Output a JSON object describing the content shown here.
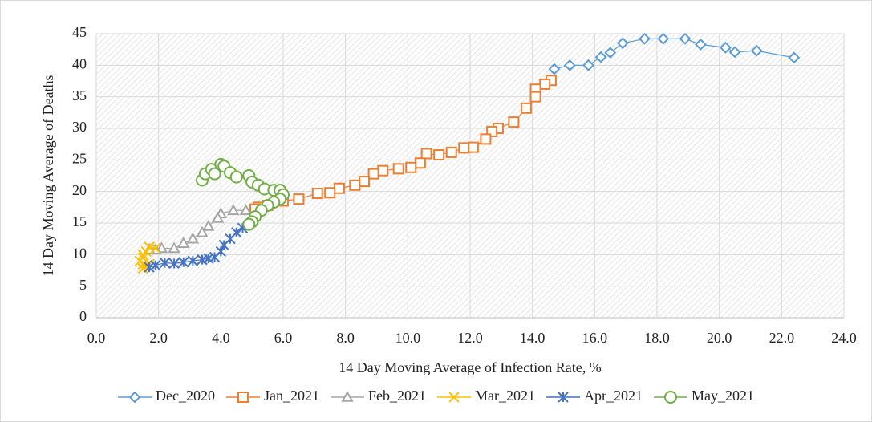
{
  "chart_data": {
    "type": "scatter",
    "xlabel": "14 Day Moving Average of Infection Rate, %",
    "ylabel": "14 Day Moving Average of  Deaths",
    "xlim": [
      0,
      24
    ],
    "ylim": [
      0,
      45
    ],
    "xticks": [
      {
        "value": 0,
        "label": "0.0"
      },
      {
        "value": 2,
        "label": "2.0"
      },
      {
        "value": 4,
        "label": "4.0"
      },
      {
        "value": 6,
        "label": "6.0"
      },
      {
        "value": 8,
        "label": "8.0"
      },
      {
        "value": 10,
        "label": "10.0"
      },
      {
        "value": 12,
        "label": "12.0"
      },
      {
        "value": 14,
        "label": "14.0"
      },
      {
        "value": 16,
        "label": "16.0"
      },
      {
        "value": 18,
        "label": "18.0"
      },
      {
        "value": 20,
        "label": "20.0"
      },
      {
        "value": 22,
        "label": "22.0"
      },
      {
        "value": 24,
        "label": "24.0"
      }
    ],
    "yticks": [
      0,
      5,
      10,
      15,
      20,
      25,
      30,
      35,
      40,
      45
    ],
    "grid": true,
    "legend": "bottom",
    "series": [
      {
        "name": "Dec_2020",
        "color": "#5b9bd5",
        "marker": "diamond",
        "x": [
          14.7,
          15.2,
          15.8,
          16.2,
          16.5,
          16.9,
          17.6,
          18.2,
          18.9,
          19.4,
          20.2,
          20.5,
          21.2,
          22.4
        ],
        "values": [
          39.4,
          40,
          40,
          41.3,
          42,
          43.5,
          44.2,
          44.2,
          44.2,
          43.3,
          42.8,
          42.1,
          42.3,
          41.2
        ]
      },
      {
        "name": "Jan_2021",
        "color": "#ed7d31",
        "marker": "square",
        "x": [
          14.6,
          14.4,
          14.1,
          14.1,
          13.8,
          13.4,
          12.9,
          12.7,
          12.5,
          12.1,
          11.8,
          11.4,
          11.0,
          10.6,
          10.4,
          10.1,
          9.7,
          9.2,
          8.9,
          8.6,
          8.3,
          7.8,
          7.5,
          7.1,
          6.5,
          6.0,
          5.5,
          5.2,
          5.1
        ],
        "values": [
          37.6,
          37,
          36.2,
          35,
          33.2,
          31,
          30,
          29.5,
          28.3,
          27,
          26.9,
          26.2,
          25.8,
          26,
          24.5,
          23.8,
          23.6,
          23.3,
          22.8,
          21.6,
          21,
          20.5,
          19.8,
          19.7,
          18.8,
          18.5,
          17.8,
          17.5,
          17.2
        ]
      },
      {
        "name": "Feb_2021",
        "color": "#a5a5a5",
        "marker": "triangle",
        "x": [
          4.8,
          4.4,
          4.0,
          3.9,
          3.6,
          3.4,
          3.1,
          2.8,
          2.5,
          2.1,
          1.9,
          1.7
        ],
        "values": [
          17,
          17,
          16.5,
          15.8,
          14.5,
          13.5,
          12.5,
          11.8,
          11,
          11,
          10.8,
          10.8
        ]
      },
      {
        "name": "Mar_2021",
        "color": "#ffc000",
        "marker": "x",
        "x": [
          1.9,
          1.7,
          1.6,
          1.5,
          1.5,
          1.4,
          1.5,
          1.5,
          1.6,
          1.7
        ],
        "values": [
          11,
          11.2,
          10.5,
          10,
          9.5,
          9,
          8.5,
          7.8,
          8.2,
          8.5
        ]
      },
      {
        "name": "Apr_2021",
        "color": "#4472c4",
        "marker": "star",
        "x": [
          1.7,
          1.9,
          2.2,
          2.5,
          2.8,
          3.1,
          3.4,
          3.6,
          3.8,
          4.0,
          4.1,
          4.3,
          4.5,
          4.7
        ],
        "values": [
          8,
          8.3,
          8.7,
          8.6,
          8.8,
          9,
          9.2,
          9.4,
          9.6,
          10.5,
          11.5,
          12.5,
          13.5,
          14.2
        ]
      },
      {
        "name": "May_2021",
        "color": "#70ad47",
        "marker": "circle",
        "x": [
          3.4,
          3.5,
          3.7,
          3.8,
          4.0,
          4.1,
          4.3,
          4.5,
          4.9,
          5.0,
          5.2,
          5.4,
          5.7,
          5.9,
          6.0,
          5.9,
          5.7,
          5.5,
          5.3,
          5.1,
          5.0,
          4.9
        ],
        "values": [
          21.8,
          22.8,
          23.5,
          22.8,
          24.3,
          24,
          23,
          22.3,
          22.5,
          21.5,
          21,
          20.4,
          20.2,
          20.2,
          19.5,
          18.8,
          18.3,
          17.8,
          17,
          16,
          15.2,
          14.8
        ]
      }
    ]
  }
}
